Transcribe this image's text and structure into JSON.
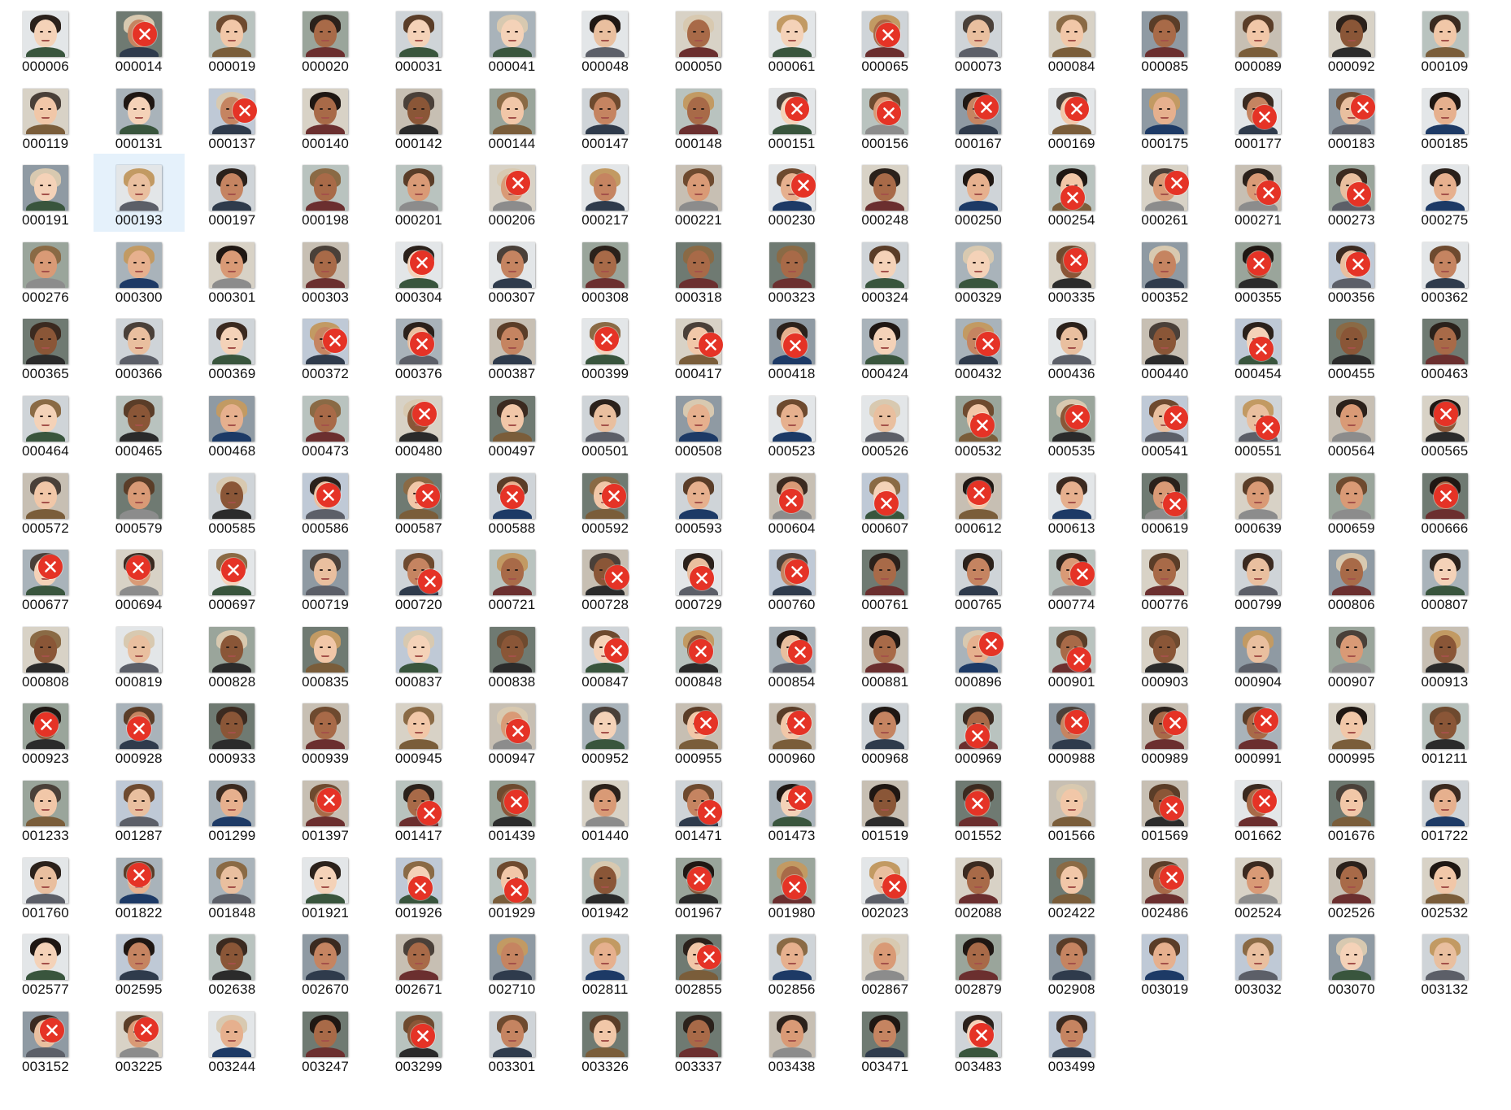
{
  "files": [
    {
      "name": "000006",
      "rejected": false
    },
    {
      "name": "000014",
      "rejected": true
    },
    {
      "name": "000019",
      "rejected": false
    },
    {
      "name": "000020",
      "rejected": false
    },
    {
      "name": "000031",
      "rejected": false
    },
    {
      "name": "000041",
      "rejected": false
    },
    {
      "name": "000048",
      "rejected": false
    },
    {
      "name": "000050",
      "rejected": false
    },
    {
      "name": "000061",
      "rejected": false
    },
    {
      "name": "000065",
      "rejected": true
    },
    {
      "name": "000073",
      "rejected": false
    },
    {
      "name": "000084",
      "rejected": false
    },
    {
      "name": "000085",
      "rejected": false
    },
    {
      "name": "000089",
      "rejected": false
    },
    {
      "name": "000092",
      "rejected": false
    },
    {
      "name": "000109",
      "rejected": false
    },
    {
      "name": "000119",
      "rejected": false
    },
    {
      "name": "000131",
      "rejected": false
    },
    {
      "name": "000137",
      "rejected": true
    },
    {
      "name": "000140",
      "rejected": false
    },
    {
      "name": "000142",
      "rejected": false
    },
    {
      "name": "000144",
      "rejected": false
    },
    {
      "name": "000147",
      "rejected": false
    },
    {
      "name": "000148",
      "rejected": false
    },
    {
      "name": "000151",
      "rejected": true
    },
    {
      "name": "000156",
      "rejected": true
    },
    {
      "name": "000167",
      "rejected": true
    },
    {
      "name": "000169",
      "rejected": true
    },
    {
      "name": "000175",
      "rejected": false
    },
    {
      "name": "000177",
      "rejected": true
    },
    {
      "name": "000183",
      "rejected": true
    },
    {
      "name": "000185",
      "rejected": false
    },
    {
      "name": "000191",
      "rejected": false
    },
    {
      "name": "000193",
      "rejected": false,
      "selected": true
    },
    {
      "name": "000197",
      "rejected": false
    },
    {
      "name": "000198",
      "rejected": false
    },
    {
      "name": "000201",
      "rejected": false
    },
    {
      "name": "000206",
      "rejected": true
    },
    {
      "name": "000217",
      "rejected": false
    },
    {
      "name": "000221",
      "rejected": false
    },
    {
      "name": "000230",
      "rejected": true
    },
    {
      "name": "000248",
      "rejected": false
    },
    {
      "name": "000250",
      "rejected": false
    },
    {
      "name": "000254",
      "rejected": true
    },
    {
      "name": "000261",
      "rejected": true
    },
    {
      "name": "000271",
      "rejected": true
    },
    {
      "name": "000273",
      "rejected": true
    },
    {
      "name": "000275",
      "rejected": false
    },
    {
      "name": "000276",
      "rejected": false
    },
    {
      "name": "000300",
      "rejected": false
    },
    {
      "name": "000301",
      "rejected": false
    },
    {
      "name": "000303",
      "rejected": false
    },
    {
      "name": "000304",
      "rejected": true
    },
    {
      "name": "000307",
      "rejected": false
    },
    {
      "name": "000308",
      "rejected": false
    },
    {
      "name": "000318",
      "rejected": false
    },
    {
      "name": "000323",
      "rejected": false
    },
    {
      "name": "000324",
      "rejected": false
    },
    {
      "name": "000329",
      "rejected": false
    },
    {
      "name": "000335",
      "rejected": true
    },
    {
      "name": "000352",
      "rejected": false
    },
    {
      "name": "000355",
      "rejected": true
    },
    {
      "name": "000356",
      "rejected": true
    },
    {
      "name": "000362",
      "rejected": false
    },
    {
      "name": "000365",
      "rejected": false
    },
    {
      "name": "000366",
      "rejected": false
    },
    {
      "name": "000369",
      "rejected": false
    },
    {
      "name": "000372",
      "rejected": true
    },
    {
      "name": "000376",
      "rejected": true
    },
    {
      "name": "000387",
      "rejected": false
    },
    {
      "name": "000399",
      "rejected": true
    },
    {
      "name": "000417",
      "rejected": true
    },
    {
      "name": "000418",
      "rejected": true
    },
    {
      "name": "000424",
      "rejected": false
    },
    {
      "name": "000432",
      "rejected": true
    },
    {
      "name": "000436",
      "rejected": false
    },
    {
      "name": "000440",
      "rejected": false
    },
    {
      "name": "000454",
      "rejected": true
    },
    {
      "name": "000455",
      "rejected": false
    },
    {
      "name": "000463",
      "rejected": false
    },
    {
      "name": "000464",
      "rejected": false
    },
    {
      "name": "000465",
      "rejected": false
    },
    {
      "name": "000468",
      "rejected": false
    },
    {
      "name": "000473",
      "rejected": false
    },
    {
      "name": "000480",
      "rejected": true
    },
    {
      "name": "000497",
      "rejected": false
    },
    {
      "name": "000501",
      "rejected": false
    },
    {
      "name": "000508",
      "rejected": false
    },
    {
      "name": "000523",
      "rejected": false
    },
    {
      "name": "000526",
      "rejected": false
    },
    {
      "name": "000532",
      "rejected": true
    },
    {
      "name": "000535",
      "rejected": true
    },
    {
      "name": "000541",
      "rejected": true
    },
    {
      "name": "000551",
      "rejected": true
    },
    {
      "name": "000564",
      "rejected": false
    },
    {
      "name": "000565",
      "rejected": true
    },
    {
      "name": "000572",
      "rejected": false
    },
    {
      "name": "000579",
      "rejected": false
    },
    {
      "name": "000585",
      "rejected": false
    },
    {
      "name": "000586",
      "rejected": true
    },
    {
      "name": "000587",
      "rejected": true
    },
    {
      "name": "000588",
      "rejected": true
    },
    {
      "name": "000592",
      "rejected": true
    },
    {
      "name": "000593",
      "rejected": false
    },
    {
      "name": "000604",
      "rejected": true
    },
    {
      "name": "000607",
      "rejected": true
    },
    {
      "name": "000612",
      "rejected": true
    },
    {
      "name": "000613",
      "rejected": false
    },
    {
      "name": "000619",
      "rejected": true
    },
    {
      "name": "000639",
      "rejected": false
    },
    {
      "name": "000659",
      "rejected": false
    },
    {
      "name": "000666",
      "rejected": true
    },
    {
      "name": "000677",
      "rejected": true
    },
    {
      "name": "000694",
      "rejected": true
    },
    {
      "name": "000697",
      "rejected": true
    },
    {
      "name": "000719",
      "rejected": false
    },
    {
      "name": "000720",
      "rejected": true
    },
    {
      "name": "000721",
      "rejected": false
    },
    {
      "name": "000728",
      "rejected": true
    },
    {
      "name": "000729",
      "rejected": true
    },
    {
      "name": "000760",
      "rejected": true
    },
    {
      "name": "000761",
      "rejected": false
    },
    {
      "name": "000765",
      "rejected": false
    },
    {
      "name": "000774",
      "rejected": true
    },
    {
      "name": "000776",
      "rejected": false
    },
    {
      "name": "000799",
      "rejected": false
    },
    {
      "name": "000806",
      "rejected": false
    },
    {
      "name": "000807",
      "rejected": false
    },
    {
      "name": "000808",
      "rejected": false
    },
    {
      "name": "000819",
      "rejected": false
    },
    {
      "name": "000828",
      "rejected": false
    },
    {
      "name": "000835",
      "rejected": false
    },
    {
      "name": "000837",
      "rejected": false
    },
    {
      "name": "000838",
      "rejected": false
    },
    {
      "name": "000847",
      "rejected": true
    },
    {
      "name": "000848",
      "rejected": true
    },
    {
      "name": "000854",
      "rejected": true
    },
    {
      "name": "000881",
      "rejected": false
    },
    {
      "name": "000896",
      "rejected": true
    },
    {
      "name": "000901",
      "rejected": true
    },
    {
      "name": "000903",
      "rejected": false
    },
    {
      "name": "000904",
      "rejected": false
    },
    {
      "name": "000907",
      "rejected": false
    },
    {
      "name": "000913",
      "rejected": false
    },
    {
      "name": "000923",
      "rejected": true
    },
    {
      "name": "000928",
      "rejected": true
    },
    {
      "name": "000933",
      "rejected": false
    },
    {
      "name": "000939",
      "rejected": false
    },
    {
      "name": "000945",
      "rejected": false
    },
    {
      "name": "000947",
      "rejected": true
    },
    {
      "name": "000952",
      "rejected": false
    },
    {
      "name": "000955",
      "rejected": true
    },
    {
      "name": "000960",
      "rejected": true
    },
    {
      "name": "000968",
      "rejected": false
    },
    {
      "name": "000969",
      "rejected": true
    },
    {
      "name": "000988",
      "rejected": true
    },
    {
      "name": "000989",
      "rejected": true
    },
    {
      "name": "000991",
      "rejected": true
    },
    {
      "name": "000995",
      "rejected": false
    },
    {
      "name": "001211",
      "rejected": false
    },
    {
      "name": "001233",
      "rejected": false
    },
    {
      "name": "001287",
      "rejected": false
    },
    {
      "name": "001299",
      "rejected": false
    },
    {
      "name": "001397",
      "rejected": true
    },
    {
      "name": "001417",
      "rejected": true
    },
    {
      "name": "001439",
      "rejected": true
    },
    {
      "name": "001440",
      "rejected": false
    },
    {
      "name": "001471",
      "rejected": true
    },
    {
      "name": "001473",
      "rejected": true
    },
    {
      "name": "001519",
      "rejected": false
    },
    {
      "name": "001552",
      "rejected": true
    },
    {
      "name": "001566",
      "rejected": false
    },
    {
      "name": "001569",
      "rejected": true
    },
    {
      "name": "001662",
      "rejected": true
    },
    {
      "name": "001676",
      "rejected": false
    },
    {
      "name": "001722",
      "rejected": false
    },
    {
      "name": "001760",
      "rejected": false
    },
    {
      "name": "001822",
      "rejected": true
    },
    {
      "name": "001848",
      "rejected": false
    },
    {
      "name": "001921",
      "rejected": false
    },
    {
      "name": "001926",
      "rejected": true
    },
    {
      "name": "001929",
      "rejected": true
    },
    {
      "name": "001942",
      "rejected": false
    },
    {
      "name": "001967",
      "rejected": true
    },
    {
      "name": "001980",
      "rejected": true
    },
    {
      "name": "002023",
      "rejected": true
    },
    {
      "name": "002088",
      "rejected": false
    },
    {
      "name": "002422",
      "rejected": false
    },
    {
      "name": "002486",
      "rejected": true
    },
    {
      "name": "002524",
      "rejected": false
    },
    {
      "name": "002526",
      "rejected": false
    },
    {
      "name": "002532",
      "rejected": false
    },
    {
      "name": "002577",
      "rejected": false
    },
    {
      "name": "002595",
      "rejected": false
    },
    {
      "name": "002638",
      "rejected": false
    },
    {
      "name": "002670",
      "rejected": false
    },
    {
      "name": "002671",
      "rejected": false
    },
    {
      "name": "002710",
      "rejected": false
    },
    {
      "name": "002811",
      "rejected": false
    },
    {
      "name": "002855",
      "rejected": true
    },
    {
      "name": "002856",
      "rejected": false
    },
    {
      "name": "002867",
      "rejected": false
    },
    {
      "name": "002879",
      "rejected": false
    },
    {
      "name": "002908",
      "rejected": false
    },
    {
      "name": "003019",
      "rejected": false
    },
    {
      "name": "003032",
      "rejected": false
    },
    {
      "name": "003070",
      "rejected": false
    },
    {
      "name": "003132",
      "rejected": false
    },
    {
      "name": "003152",
      "rejected": true
    },
    {
      "name": "003225",
      "rejected": true
    },
    {
      "name": "003244",
      "rejected": false
    },
    {
      "name": "003247",
      "rejected": false
    },
    {
      "name": "003299",
      "rejected": true
    },
    {
      "name": "003301",
      "rejected": false
    },
    {
      "name": "003326",
      "rejected": false
    },
    {
      "name": "003337",
      "rejected": false
    },
    {
      "name": "003438",
      "rejected": false
    },
    {
      "name": "003471",
      "rejected": false
    },
    {
      "name": "003483",
      "rejected": true
    },
    {
      "name": "003499",
      "rejected": false
    }
  ],
  "colors": {
    "badge": "#e53326",
    "selection": "#e5f1fb",
    "label": "#111111"
  },
  "icons": {
    "rejected_overlay": "x-circle-icon",
    "thumbnail": "face-thumbnail"
  }
}
